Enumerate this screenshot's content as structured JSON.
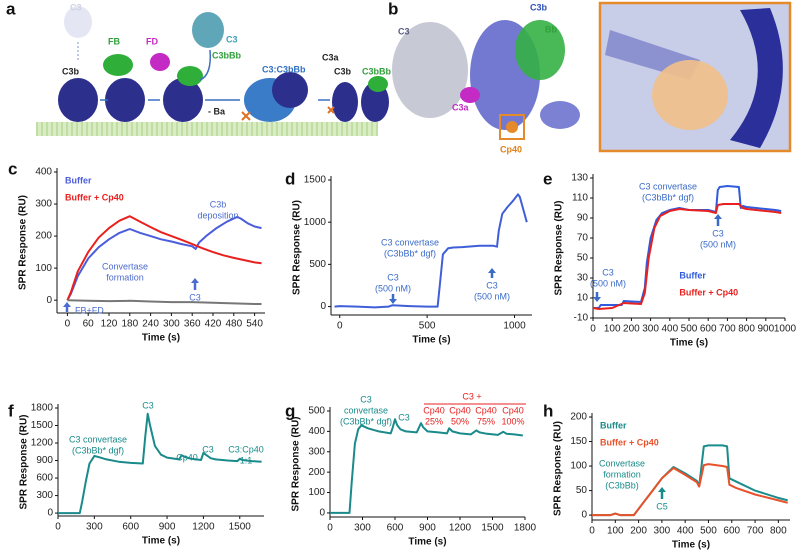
{
  "illustrations": [
    {
      "label": "a",
      "texts": [
        "C3",
        "C3b",
        "FB",
        "FD",
        "C3",
        "C3bBb",
        "- Ba",
        "C3:C3bBb",
        "C3a",
        "C3b",
        "C3bBb"
      ]
    },
    {
      "label": "b",
      "texts": [
        "C3",
        "C3b",
        "Bb",
        "C3a",
        "Cp40"
      ]
    }
  ],
  "chart_data": [
    {
      "type": "line",
      "label": "c",
      "xlabel": "Time (s)",
      "ylabel": "SPR Response (RU)",
      "xlim": [
        -30,
        570
      ],
      "xticks": [
        0,
        60,
        120,
        180,
        240,
        300,
        360,
        420,
        480,
        540
      ],
      "ylim": [
        -40,
        400
      ],
      "yticks": [
        0,
        100,
        200,
        300,
        400
      ],
      "legend": "top-left",
      "series": [
        {
          "name": "Buffer",
          "color": "#4b5ddb",
          "x": [
            0,
            10,
            30,
            60,
            90,
            120,
            150,
            180,
            210,
            240,
            270,
            300,
            330,
            360,
            370,
            380,
            400,
            430,
            460,
            490,
            500,
            520,
            540,
            560
          ],
          "values": [
            0,
            20,
            75,
            130,
            165,
            190,
            210,
            222,
            210,
            200,
            190,
            183,
            175,
            168,
            160,
            180,
            200,
            225,
            245,
            260,
            255,
            240,
            230,
            225
          ]
        },
        {
          "name": "Buffer + Cp40",
          "color": "#e8211f",
          "x": [
            0,
            10,
            30,
            60,
            90,
            120,
            150,
            180,
            210,
            240,
            270,
            300,
            330,
            360,
            390,
            420,
            450,
            480,
            510,
            540,
            560
          ],
          "values": [
            0,
            25,
            90,
            150,
            195,
            225,
            248,
            262,
            245,
            228,
            212,
            200,
            188,
            175,
            162,
            150,
            140,
            132,
            125,
            118,
            115
          ]
        },
        {
          "color": "#777777",
          "x": [
            0,
            60,
            120,
            180,
            240,
            300,
            360,
            420,
            480,
            540,
            560
          ],
          "values": [
            0,
            -2,
            -3,
            -2,
            -4,
            -6,
            -6,
            -8,
            -10,
            -12,
            -12
          ]
        }
      ],
      "annotations": [
        {
          "lines": [
            "C3b",
            "deposition"
          ],
          "color": "#4b6bd0"
        },
        {
          "lines": [
            "Convertase",
            "formation"
          ],
          "color": "#4b6bd0"
        },
        {
          "lines": [
            "C3"
          ],
          "color": "#4b6bd0"
        },
        {
          "lines": [
            "FB+FD"
          ],
          "color": "#4b6bd0"
        }
      ]
    },
    {
      "type": "line",
      "label": "d",
      "xlabel": "Time (s)",
      "ylabel": "SPR Response (RU)",
      "xlim": [
        -50,
        1100
      ],
      "xticks": [
        0,
        500,
        1000
      ],
      "ylim": [
        -100,
        1500
      ],
      "yticks": [
        0,
        500,
        1000,
        1500
      ],
      "series": [
        {
          "color": "#3f5fd8",
          "x": [
            -30,
            0,
            100,
            200,
            280,
            300,
            400,
            500,
            560,
            575,
            590,
            620,
            650,
            700,
            800,
            880,
            900,
            910,
            930,
            960,
            990,
            1020,
            1030,
            1050,
            1070
          ],
          "values": [
            0,
            5,
            0,
            -10,
            0,
            15,
            5,
            0,
            0,
            300,
            620,
            690,
            700,
            705,
            720,
            720,
            710,
            900,
            1100,
            1180,
            1250,
            1330,
            1300,
            1150,
            1000
          ]
        }
      ],
      "annotations": [
        {
          "lines": [
            "C3",
            "(500 nM)"
          ],
          "color": "#3a6bc8"
        },
        {
          "lines": [
            "C3 convertase",
            "(C3bBb* dgf)"
          ],
          "color": "#3a6bc8"
        },
        {
          "lines": [
            "C3",
            "(500 nM)"
          ],
          "color": "#3a6bc8"
        }
      ]
    },
    {
      "type": "line",
      "label": "e",
      "xlabel": "Time (s)",
      "ylabel": "SPR Response (RU)",
      "xlim": [
        0,
        1000
      ],
      "xticks": [
        0,
        100,
        200,
        300,
        400,
        500,
        600,
        700,
        800,
        900,
        1000
      ],
      "ylim": [
        -10,
        130
      ],
      "yticks": [
        -10,
        10,
        30,
        50,
        70,
        90,
        110,
        130
      ],
      "legend": "bottom-right",
      "series": [
        {
          "name": "Buffer",
          "color": "#2f5bdc",
          "x": [
            0,
            30,
            40,
            100,
            150,
            160,
            250,
            270,
            280,
            300,
            330,
            360,
            400,
            450,
            500,
            600,
            640,
            650,
            660,
            700,
            760,
            770,
            780,
            800,
            850,
            900,
            950,
            980
          ],
          "values": [
            0,
            0,
            3,
            3,
            3,
            7,
            6,
            20,
            45,
            70,
            88,
            95,
            98,
            100,
            98,
            98,
            96,
            118,
            121,
            122,
            121,
            100,
            102,
            101,
            100,
            99,
            98,
            97
          ]
        },
        {
          "name": "Buffer + Cp40",
          "color": "#e8211f",
          "x": [
            0,
            30,
            100,
            160,
            250,
            270,
            290,
            320,
            350,
            400,
            450,
            500,
            600,
            640,
            650,
            680,
            720,
            760,
            780,
            800,
            850,
            900,
            950,
            980
          ],
          "values": [
            0,
            -1,
            0,
            5,
            4,
            15,
            50,
            80,
            92,
            97,
            99,
            98,
            97,
            95,
            103,
            104,
            104,
            104,
            100,
            99,
            98,
            97,
            96,
            95
          ]
        }
      ],
      "annotations": [
        {
          "lines": [
            "C3",
            "(500 nM)"
          ],
          "color": "#3a6bc8"
        },
        {
          "lines": [
            "C3 convertase",
            "(C3bBb* dgf)"
          ],
          "color": "#3a6bc8"
        },
        {
          "lines": [
            "C3",
            "(500 nM)"
          ],
          "color": "#3a6bc8"
        }
      ]
    },
    {
      "type": "line",
      "label": "f",
      "xlabel": "Time (s)",
      "ylabel": "SPR Response (RU)",
      "xlim": [
        0,
        1700
      ],
      "xticks": [
        0,
        300,
        600,
        900,
        1200,
        1500
      ],
      "ylim": [
        -50,
        1800
      ],
      "yticks": [
        0,
        300,
        600,
        900,
        1200,
        1500,
        1800
      ],
      "series": [
        {
          "color": "#1a8a8a",
          "x": [
            0,
            180,
            200,
            230,
            260,
            300,
            350,
            400,
            500,
            600,
            700,
            720,
            740,
            760,
            800,
            850,
            900,
            1000,
            1020,
            1050,
            1100,
            1180,
            1200,
            1220,
            1260,
            1300,
            1400,
            1480,
            1500,
            1520,
            1600,
            1680
          ],
          "values": [
            0,
            0,
            200,
            550,
            850,
            980,
            950,
            920,
            880,
            860,
            850,
            1300,
            1700,
            1500,
            1150,
            1000,
            950,
            920,
            990,
            960,
            930,
            910,
            1030,
            1000,
            940,
            920,
            900,
            890,
            930,
            910,
            890,
            880
          ]
        }
      ],
      "annotations": [
        {
          "lines": [
            "C3 convertase",
            "(C3bBb* dgf)"
          ],
          "color": "#1a8a8a"
        },
        {
          "lines": [
            "C3"
          ],
          "color": "#1a8a8a"
        },
        {
          "lines": [
            "Cp40"
          ],
          "color": "#1a8a8a"
        },
        {
          "lines": [
            "C3"
          ],
          "color": "#1a8a8a"
        },
        {
          "lines": [
            "C3:Cp40",
            "1:1"
          ],
          "color": "#1a8a8a"
        }
      ]
    },
    {
      "type": "line",
      "label": "g",
      "xlabel": "Time (s)",
      "ylabel": "SPR Response (RU)",
      "xlim": [
        0,
        1800
      ],
      "xticks": [
        0,
        300,
        600,
        900,
        1200,
        1500,
        1800
      ],
      "ylim": [
        -20,
        500
      ],
      "yticks": [
        0,
        100,
        200,
        300,
        400,
        500
      ],
      "series": [
        {
          "color": "#1a8a8a",
          "x": [
            0,
            180,
            200,
            230,
            260,
            290,
            350,
            450,
            560,
            580,
            600,
            620,
            650,
            700,
            800,
            840,
            860,
            900,
            1000,
            1080,
            1100,
            1130,
            1200,
            1300,
            1350,
            1380,
            1450,
            1550,
            1600,
            1630,
            1700,
            1780
          ],
          "values": [
            0,
            0,
            150,
            340,
            410,
            430,
            415,
            400,
            390,
            420,
            460,
            430,
            410,
            400,
            395,
            440,
            420,
            400,
            395,
            390,
            415,
            400,
            390,
            385,
            405,
            395,
            388,
            383,
            398,
            388,
            385,
            380
          ]
        }
      ],
      "annotations": [
        {
          "lines": [
            "C3",
            "convertase",
            "(C3bBb* dgf)"
          ],
          "color": "#1a8a8a"
        },
        {
          "lines": [
            "C3"
          ],
          "color": "#1a8a8a"
        },
        {
          "lines": [
            "C3 +"
          ],
          "color": "#e8211f"
        },
        {
          "lines": [
            "Cp40",
            "25%"
          ],
          "color": "#e8211f"
        },
        {
          "lines": [
            "Cp40",
            "50%"
          ],
          "color": "#e8211f"
        },
        {
          "lines": [
            "Cp40",
            "75%"
          ],
          "color": "#e8211f"
        },
        {
          "lines": [
            "Cp40",
            "100%"
          ],
          "color": "#e8211f"
        }
      ]
    },
    {
      "type": "line",
      "label": "h",
      "xlabel": "Time (s)",
      "ylabel": "SPR Response (RU)",
      "xlim": [
        0,
        850
      ],
      "xticks": [
        0,
        100,
        200,
        300,
        400,
        500,
        600,
        700,
        800
      ],
      "ylim": [
        -10,
        200
      ],
      "yticks": [
        0,
        50,
        100,
        150,
        200
      ],
      "legend": "top-left",
      "series": [
        {
          "name": "Buffer",
          "color": "#1a8c8c",
          "x": [
            0,
            80,
            100,
            120,
            180,
            220,
            260,
            300,
            350,
            400,
            450,
            460,
            480,
            500,
            560,
            580,
            590,
            620,
            700,
            800,
            840
          ],
          "values": [
            0,
            0,
            3,
            0,
            0,
            25,
            50,
            75,
            98,
            85,
            70,
            60,
            140,
            142,
            142,
            140,
            75,
            68,
            50,
            35,
            30
          ]
        },
        {
          "name": "Buffer + Cp40",
          "color": "#e8512a",
          "x": [
            0,
            80,
            100,
            120,
            180,
            220,
            260,
            300,
            350,
            400,
            450,
            460,
            480,
            500,
            560,
            580,
            590,
            620,
            700,
            800,
            840
          ],
          "values": [
            0,
            0,
            3,
            0,
            0,
            25,
            50,
            75,
            96,
            82,
            67,
            58,
            102,
            104,
            100,
            98,
            62,
            55,
            42,
            30,
            25
          ]
        }
      ],
      "annotations": [
        {
          "lines": [
            "Convertase",
            "formation",
            "(C3bBb)"
          ],
          "color": "#1a8a8a"
        },
        {
          "lines": [
            "C5"
          ],
          "color": "#1a8a8a"
        }
      ]
    }
  ]
}
